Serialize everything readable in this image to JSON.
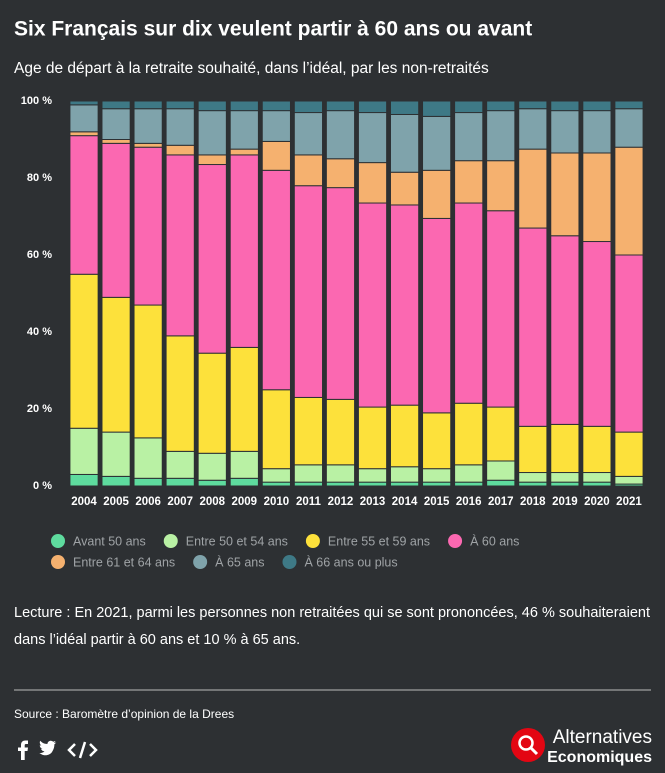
{
  "chart_data": {
    "type": "stacked_bar",
    "title": "Six Français sur dix veulent partir à 60 ans ou avant",
    "subtitle": "Age de départ à la retraite souhaité, dans l’idéal, par les non-retraités",
    "categories": [
      "2004",
      "2005",
      "2006",
      "2007",
      "2008",
      "2009",
      "2010",
      "2011",
      "2012",
      "2013",
      "2014",
      "2015",
      "2016",
      "2017",
      "2018",
      "2019",
      "2020",
      "2021"
    ],
    "series": [
      {
        "name": "Avant 50 ans",
        "color": "#5edb9e",
        "values": [
          3,
          2.5,
          2,
          2,
          1.5,
          2,
          1,
          1,
          1,
          1,
          1,
          1,
          1,
          1.5,
          1,
          1,
          1,
          0.5
        ]
      },
      {
        "name": "Entre 50 et 54 ans",
        "color": "#b9f1a4",
        "values": [
          12,
          11.5,
          10.5,
          7,
          7,
          7,
          3.5,
          4.5,
          4.5,
          3.5,
          4,
          3.5,
          4.5,
          5,
          2.5,
          2.5,
          2.5,
          2
        ]
      },
      {
        "name": "Entre 55 et 59 ans",
        "color": "#fde13b",
        "values": [
          40,
          35,
          34.5,
          30,
          26,
          27,
          20.5,
          17.5,
          17,
          16,
          16,
          14.5,
          16,
          14,
          12,
          12.5,
          12,
          11.5
        ]
      },
      {
        "name": "À 60 ans",
        "color": "#fb68b1",
        "values": [
          36,
          40,
          41,
          47,
          49,
          50,
          57,
          55,
          55,
          53,
          52,
          50.5,
          52,
          51,
          51.5,
          49,
          48,
          46
        ]
      },
      {
        "name": "Entre 61 et 64 ans",
        "color": "#f5b16f",
        "values": [
          1,
          1,
          1,
          2.5,
          2.5,
          1.5,
          7.5,
          8,
          7.5,
          10.5,
          8.5,
          12.5,
          11,
          13,
          20.5,
          21.5,
          23,
          28
        ]
      },
      {
        "name": "À 65 ans",
        "color": "#7fa3ab",
        "values": [
          7,
          8,
          9,
          9.5,
          11.5,
          10,
          8,
          11,
          12.5,
          13,
          15,
          14,
          12.5,
          13,
          10.5,
          11,
          11,
          10
        ]
      },
      {
        "name": "À 66 ans ou plus",
        "color": "#3e7986",
        "values": [
          1,
          2,
          2,
          2,
          2.5,
          2.5,
          2.5,
          3,
          2.5,
          3,
          3.5,
          4,
          3,
          2.5,
          2,
          2.5,
          2.5,
          2
        ]
      }
    ],
    "ylim": [
      0,
      100
    ],
    "yticks": [
      {
        "value": 0,
        "label": "0 %"
      },
      {
        "value": 20,
        "label": "20 %"
      },
      {
        "value": 40,
        "label": "40 %"
      },
      {
        "value": 60,
        "label": "60 %"
      },
      {
        "value": 80,
        "label": "80 %"
      },
      {
        "value": 100,
        "label": "100 %"
      }
    ],
    "grid": false
  },
  "reading": "Lecture : En 2021, parmi les personnes non retraitées qui se sont prononcées, 46 % souhaiteraient dans l’idéal partir à 60 ans et 10 % à 65 ans.",
  "source": "Source : Baromètre d’opinion de la Drees",
  "brand": {
    "line1": "Alternatives",
    "line2": "Economiques"
  }
}
